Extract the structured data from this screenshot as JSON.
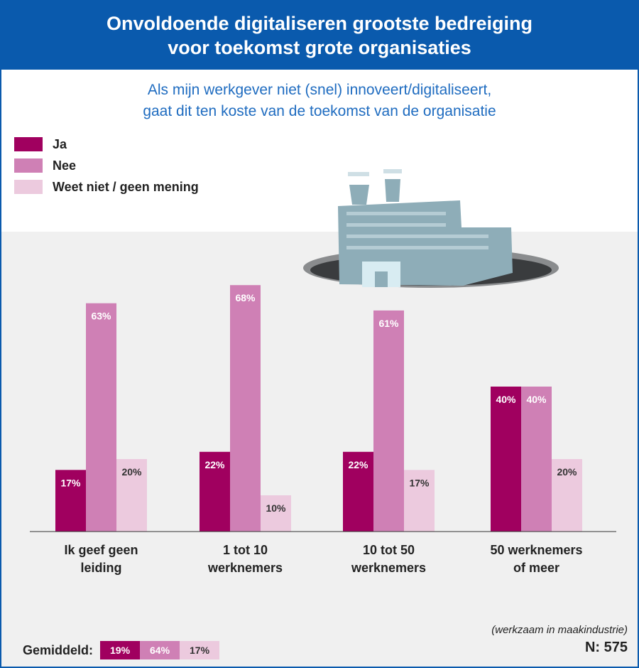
{
  "header": {
    "title_line1": "Onvoldoende digitaliseren grootste bedreiging",
    "title_line2": "voor toekomst grote organisaties"
  },
  "subtitle": {
    "line1": "Als mijn werkgever niet (snel) innoveert/digitaliseert,",
    "line2": "gaat dit ten koste van de toekomst van de organisatie"
  },
  "legend": [
    {
      "label": "Ja",
      "color": "#a0005f"
    },
    {
      "label": "Nee",
      "color": "#cf80b5"
    },
    {
      "label": "Weet niet / geen mening",
      "color": "#eccade"
    }
  ],
  "chart_data": {
    "type": "bar",
    "categories": [
      "Ik geef geen\nleiding",
      "1 tot 10\nwerknemers",
      "10 tot 50\nwerknemers",
      "50 werknemers\nof meer"
    ],
    "series": [
      {
        "name": "Ja",
        "values": [
          17,
          22,
          22,
          40
        ],
        "color": "#a0005f"
      },
      {
        "name": "Nee",
        "values": [
          63,
          68,
          61,
          40
        ],
        "color": "#cf80b5"
      },
      {
        "name": "Weet niet / geen mening",
        "values": [
          20,
          10,
          17,
          20
        ],
        "color": "#eccade"
      }
    ],
    "value_suffix": "%",
    "ylim": [
      0,
      70
    ]
  },
  "average": {
    "label": "Gemiddeld:",
    "values": [
      "19%",
      "64%",
      "17%"
    ]
  },
  "footer": {
    "note": "(werkzaam in maakindustrie)",
    "n": "N: 575"
  }
}
